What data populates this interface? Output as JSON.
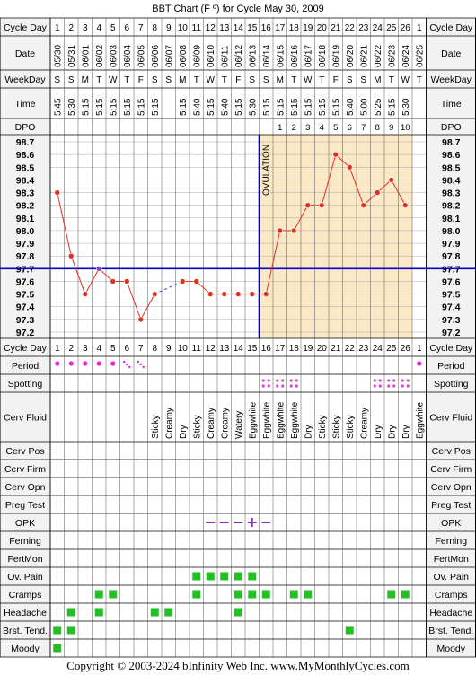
{
  "title": "BBT Chart (F º) for Cycle May 30, 2009",
  "copyright": "Copyright © 2003-2024 bInfinity Web Inc.    www.MyMonthlyCycles.com",
  "row_labels": {
    "cycle_day": "Cycle Day",
    "date": "Date",
    "weekday": "WeekDay",
    "time": "Time",
    "dpo": "DPO",
    "period": "Period",
    "spotting": "Spotting",
    "cerv_fluid": "Cerv Fluid",
    "cerv_pos": "Cerv Pos",
    "cerv_firm": "Cerv Firm",
    "cerv_opn": "Cerv Opn",
    "preg_test": "Preg Test",
    "opk": "OPK",
    "ferning": "Ferning",
    "fertmon": "FertMon",
    "ov_pain": "Ov. Pain",
    "cramps": "Cramps",
    "headache": "Headache",
    "brst_tend": "Brst. Tend.",
    "moody": "Moody"
  },
  "chart_data": {
    "type": "line",
    "title": "BBT Chart (F º) for Cycle May 30, 2009",
    "cycle_days": [
      1,
      2,
      3,
      4,
      5,
      6,
      7,
      8,
      9,
      10,
      11,
      12,
      13,
      14,
      15,
      16,
      17,
      18,
      19,
      20,
      21,
      22,
      23,
      24,
      25,
      26,
      1
    ],
    "dates": [
      "05/30",
      "05/31",
      "06/01",
      "06/02",
      "06/03",
      "06/04",
      "06/05",
      "06/06",
      "06/07",
      "06/08",
      "06/09",
      "06/10",
      "06/11",
      "06/12",
      "06/13",
      "06/14",
      "06/15",
      "06/16",
      "06/17",
      "06/18",
      "06/19",
      "06/20",
      "06/21",
      "06/22",
      "06/23",
      "06/24",
      "06/25"
    ],
    "weekdays": [
      "S",
      "S",
      "M",
      "T",
      "W",
      "T",
      "F",
      "S",
      "S",
      "M",
      "T",
      "W",
      "T",
      "F",
      "S",
      "S",
      "M",
      "T",
      "W",
      "T",
      "F",
      "S",
      "S",
      "M",
      "T",
      "W",
      "T"
    ],
    "times": [
      "5:45",
      "5:30",
      "5:15",
      "5:15",
      "5:15",
      "5:15",
      "5:15",
      "5:15",
      "",
      "5:15",
      "5:40",
      "5:15",
      "5:40",
      "5:15",
      "5:30",
      "5:15",
      "5:15",
      "5:15",
      "5:15",
      "5:15",
      "5:15",
      "5:40",
      "5:00",
      "5:25",
      "5:15",
      "5:30",
      ""
    ],
    "dpo": [
      "",
      "",
      "",
      "",
      "",
      "",
      "",
      "",
      "",
      "",
      "",
      "",
      "",
      "",
      "",
      "",
      "1",
      "2",
      "3",
      "4",
      "5",
      "6",
      "7",
      "8",
      "9",
      "10",
      ""
    ],
    "y_ticks": [
      "98.7",
      "98.6",
      "98.5",
      "98.4",
      "98.3",
      "98.2",
      "98.1",
      "98.0",
      "97.9",
      "97.8",
      "97.7",
      "97.6",
      "97.5",
      "97.4",
      "97.3",
      "97.2"
    ],
    "ylim": [
      97.2,
      98.7
    ],
    "temps": [
      98.3,
      97.8,
      97.5,
      97.7,
      97.6,
      97.6,
      97.3,
      97.5,
      null,
      97.6,
      97.6,
      97.5,
      97.5,
      97.5,
      97.5,
      97.5,
      98.0,
      98.0,
      98.2,
      98.2,
      98.6,
      98.5,
      98.2,
      98.3,
      98.4,
      98.2,
      null
    ],
    "coverline": 97.7,
    "ovulation_day": 16,
    "ovulation_label": "OVULATION",
    "period": [
      "dot",
      "dot",
      "dot",
      "dot",
      "dot",
      "light",
      "light",
      "",
      "",
      "",
      "",
      "",
      "",
      "",
      "",
      "",
      "",
      "",
      "",
      "",
      "",
      "",
      "",
      "",
      "",
      "",
      "dot"
    ],
    "spotting": [
      16,
      17,
      18,
      24,
      25,
      26
    ],
    "cerv_fluid": [
      "",
      "",
      "",
      "",
      "",
      "",
      "",
      "Sticky",
      "Creamy",
      "Dry",
      "Sticky",
      "Creamy",
      "Creamy",
      "Watery",
      "Eggwhite",
      "Eggwhite",
      "Eggwhite",
      "Eggwhite",
      "Dry",
      "Sticky",
      "Sticky",
      "Sticky",
      "Creamy",
      "Dry",
      "Dry",
      "Dry",
      "Eggwhite"
    ],
    "opk": [
      12,
      13,
      14,
      15,
      16
    ],
    "opk_positive": 15,
    "ov_pain": [
      11,
      12,
      13,
      14,
      15
    ],
    "cramps": [
      4,
      5,
      11,
      14,
      15,
      16,
      18,
      19,
      25,
      26
    ],
    "headache": [
      2,
      4,
      8,
      9,
      14
    ],
    "brst_tend": [
      1,
      2,
      22
    ],
    "moody": [
      1
    ],
    "colors": {
      "line": "#e03020",
      "coverline": "#0000cc",
      "ovulation": "#0000aa",
      "luteal_fill": "#fbe8c6",
      "marker": "#22c022",
      "period": "#ee22cc",
      "spotting": "#dd44cc",
      "opk": "#8833bb",
      "grid": "#000000"
    }
  }
}
